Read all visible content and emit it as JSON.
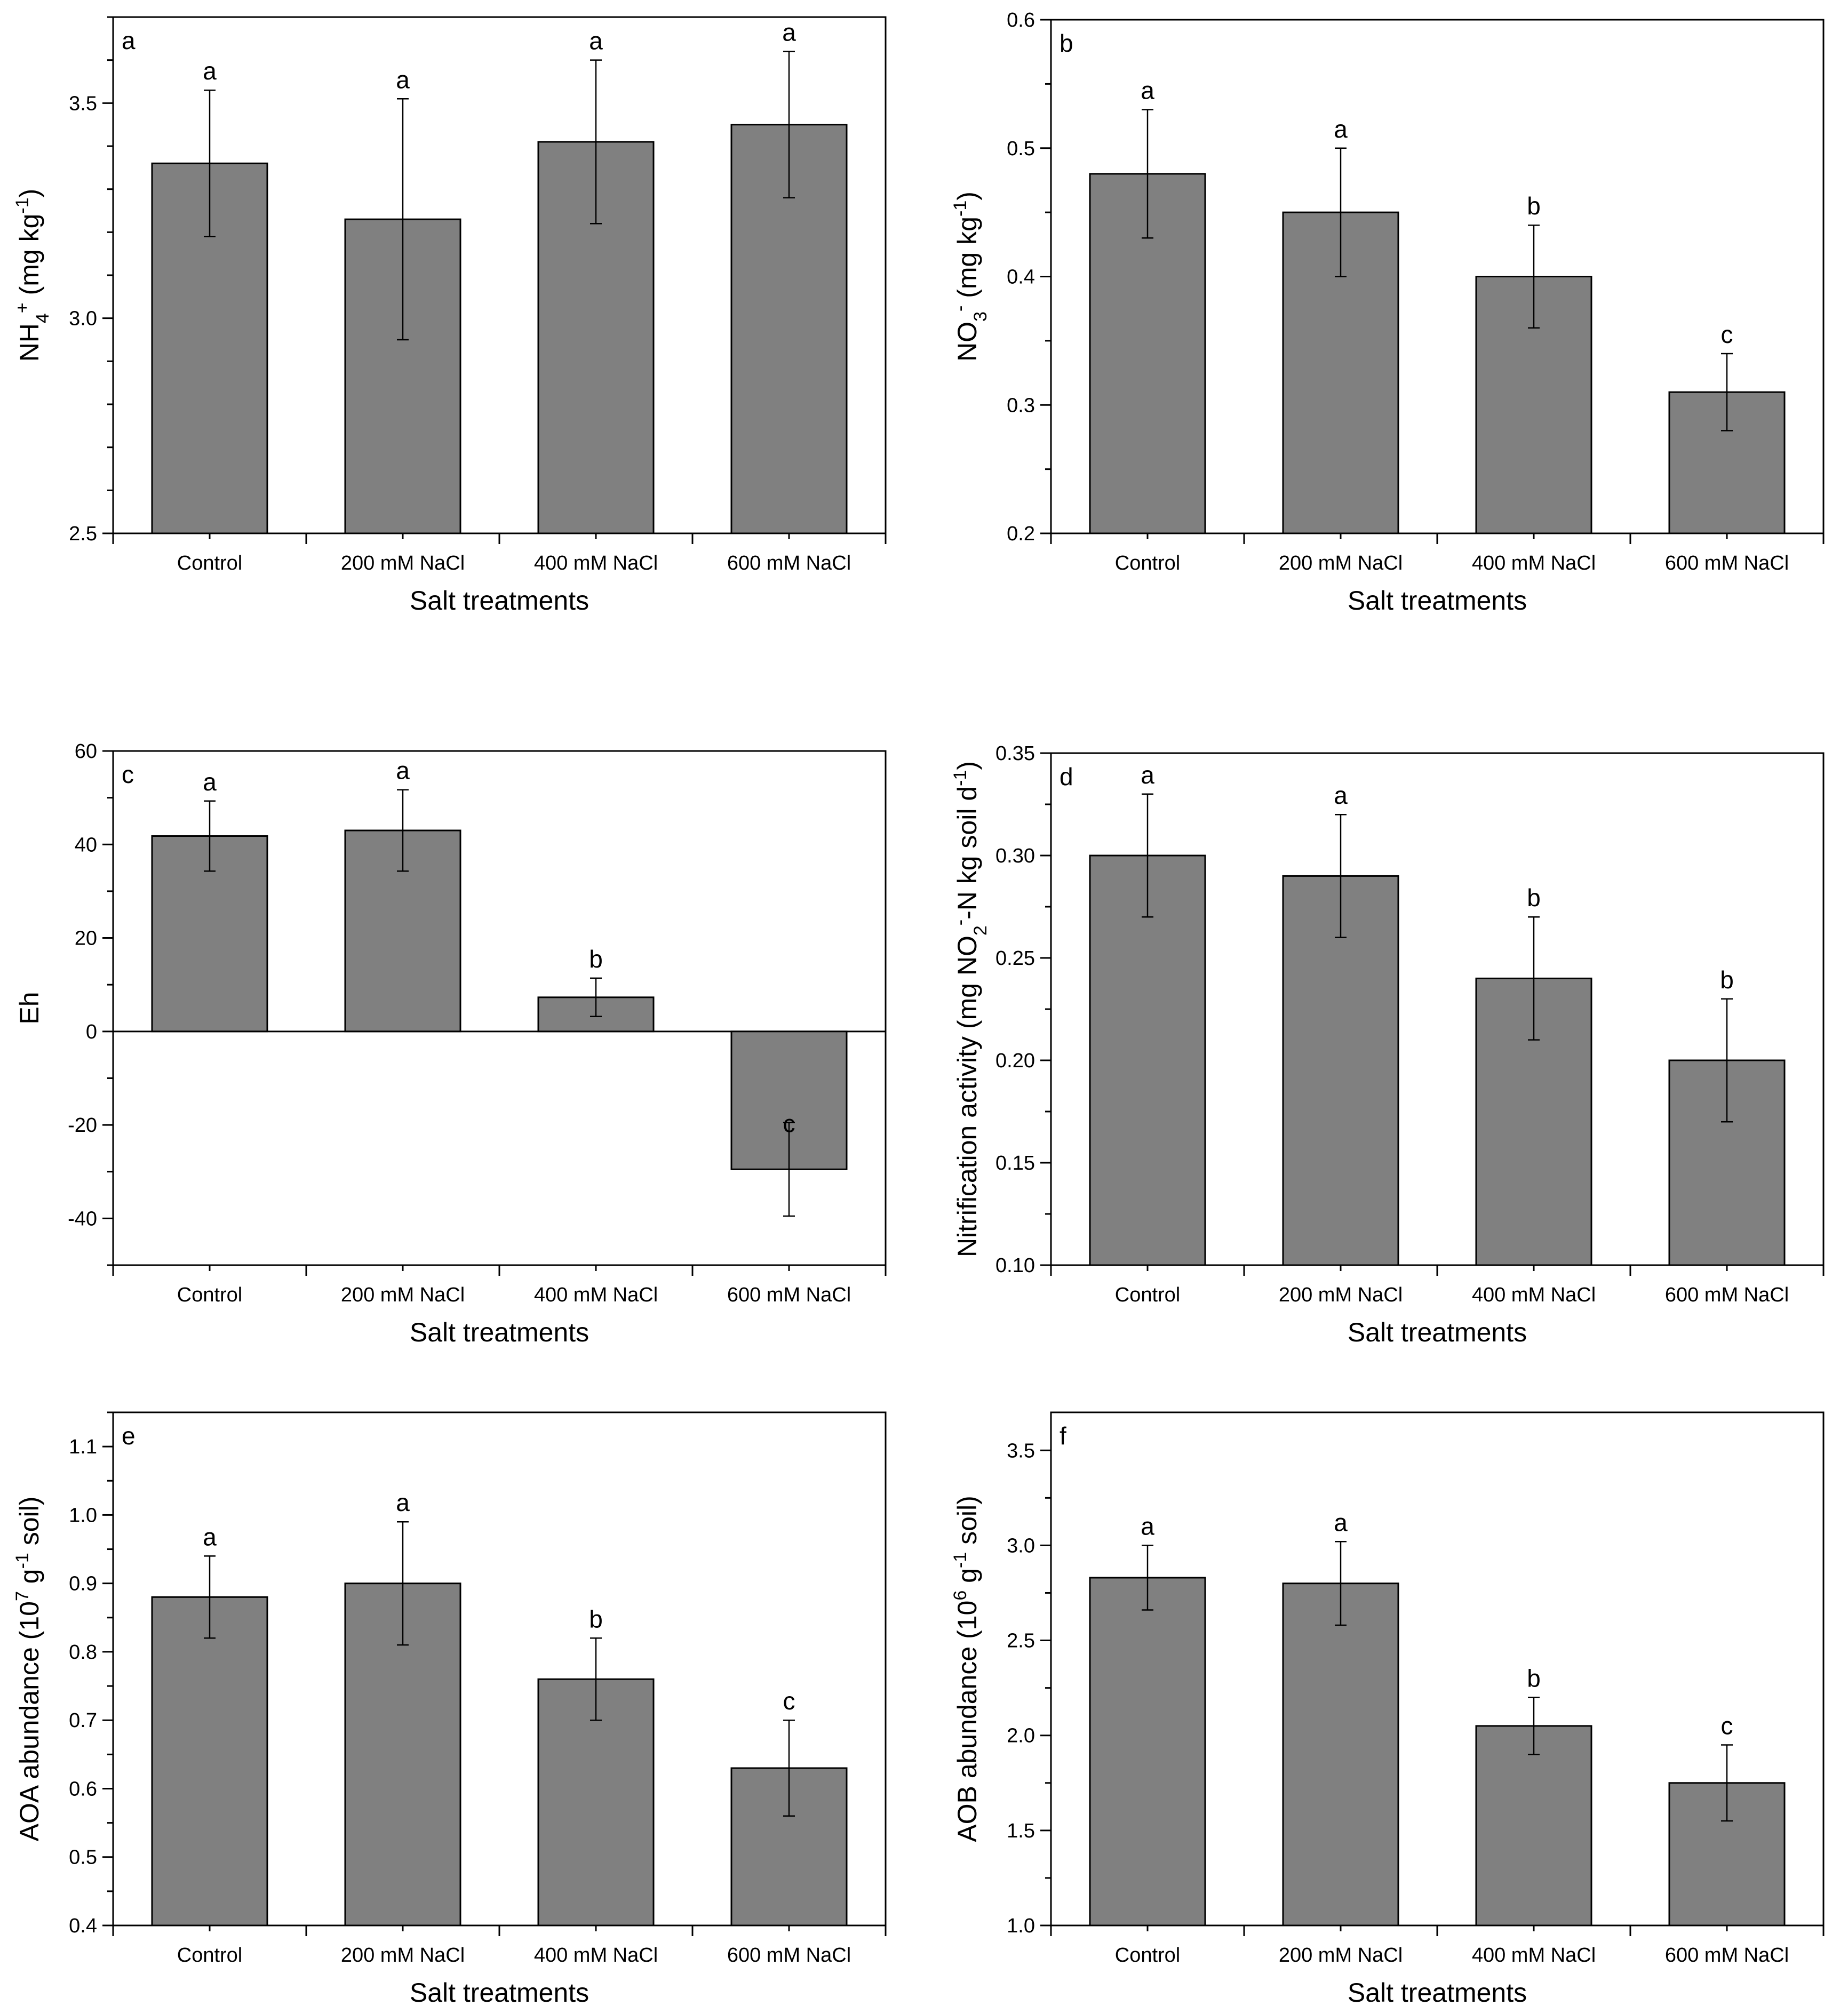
{
  "chart_data": [
    {
      "panel": "a",
      "type": "bar",
      "categories": [
        "Control",
        "200 mM NaCl",
        "400 mM NaCl",
        "600 mM NaCl"
      ],
      "values": [
        3.36,
        3.23,
        3.41,
        3.45
      ],
      "errors": [
        0.17,
        0.28,
        0.19,
        0.17
      ],
      "significance": [
        "a",
        "a",
        "a",
        "a"
      ],
      "xlabel": "Salt treatments",
      "ylabel_parts": [
        [
          "NH",
          ""
        ],
        [
          "4",
          "sub"
        ],
        [
          "+",
          "sup"
        ],
        [
          " (mg kg",
          ""
        ],
        [
          "-1",
          "sup"
        ],
        [
          ")",
          ""
        ]
      ],
      "ylim": [
        2.5,
        3.7
      ],
      "yticks": [
        "2.5",
        "3.0",
        "3.5"
      ],
      "minor_step": 0.1
    },
    {
      "panel": "b",
      "type": "bar",
      "categories": [
        "Control",
        "200 mM NaCl",
        "400 mM NaCl",
        "600 mM NaCl"
      ],
      "values": [
        0.48,
        0.45,
        0.4,
        0.31
      ],
      "errors": [
        0.05,
        0.05,
        0.04,
        0.03
      ],
      "significance": [
        "a",
        "a",
        "b",
        "c"
      ],
      "xlabel": "Salt treatments",
      "ylabel_parts": [
        [
          "NO",
          ""
        ],
        [
          "3",
          "sub"
        ],
        [
          "-",
          "sup"
        ],
        [
          " (mg kg",
          ""
        ],
        [
          "-1",
          "sup"
        ],
        [
          ")",
          ""
        ]
      ],
      "ylim": [
        0.2,
        0.6
      ],
      "yticks": [
        "0.2",
        "0.3",
        "0.4",
        "0.5",
        "0.6"
      ],
      "minor_step": 0.05
    },
    {
      "panel": "c",
      "type": "bar",
      "categories": [
        "Control",
        "200 mM NaCl",
        "400 mM NaCl",
        "600 mM NaCl"
      ],
      "values": [
        41.8,
        43.0,
        7.3,
        -29.5
      ],
      "errors": [
        7.5,
        8.7,
        4.1,
        10.0
      ],
      "significance": [
        "a",
        "a",
        "b",
        "c"
      ],
      "xlabel": "Salt treatments",
      "ylabel_parts": [
        [
          "Eh",
          ""
        ]
      ],
      "ylim": [
        -50,
        60
      ],
      "yticks": [
        "-40",
        "-20",
        "0",
        "20",
        "40",
        "60"
      ],
      "minor_step": 10,
      "zero_line": true
    },
    {
      "panel": "d",
      "type": "bar",
      "categories": [
        "Control",
        "200 mM NaCl",
        "400 mM NaCl",
        "600 mM NaCl"
      ],
      "values": [
        0.3,
        0.29,
        0.24,
        0.2
      ],
      "errors": [
        0.03,
        0.03,
        0.03,
        0.03
      ],
      "significance": [
        "a",
        "a",
        "b",
        "b"
      ],
      "xlabel": "Salt treatments",
      "ylabel_parts": [
        [
          "Nitrification activity (mg NO",
          ""
        ],
        [
          "2",
          "sub"
        ],
        [
          "-",
          "sup"
        ],
        [
          "-N kg soil d",
          ""
        ],
        [
          "-1",
          "sup"
        ],
        [
          ")",
          ""
        ]
      ],
      "ylim": [
        0.1,
        0.35
      ],
      "yticks": [
        "0.10",
        "0.15",
        "0.20",
        "0.25",
        "0.30",
        "0.35"
      ],
      "minor_step": 0.025
    },
    {
      "panel": "e",
      "type": "bar",
      "categories": [
        "Control",
        "200 mM NaCl",
        "400 mM NaCl",
        "600 mM NaCl"
      ],
      "values": [
        0.88,
        0.9,
        0.76,
        0.63
      ],
      "errors": [
        0.06,
        0.09,
        0.06,
        0.07
      ],
      "significance": [
        "a",
        "a",
        "b",
        "c"
      ],
      "xlabel": "Salt treatments",
      "ylabel_parts": [
        [
          "AOA abundance (10",
          ""
        ],
        [
          "7",
          "sup"
        ],
        [
          " g",
          ""
        ],
        [
          "-1",
          "sup"
        ],
        [
          " soil)",
          ""
        ]
      ],
      "ylim": [
        0.4,
        1.15
      ],
      "yticks": [
        "0.4",
        "0.5",
        "0.6",
        "0.7",
        "0.8",
        "0.9",
        "1.0",
        "1.1"
      ],
      "minor_step": 0.05
    },
    {
      "panel": "f",
      "type": "bar",
      "categories": [
        "Control",
        "200 mM NaCl",
        "400 mM NaCl",
        "600 mM NaCl"
      ],
      "values": [
        2.83,
        2.8,
        2.05,
        1.75
      ],
      "errors": [
        0.17,
        0.22,
        0.15,
        0.2
      ],
      "significance": [
        "a",
        "a",
        "b",
        "c"
      ],
      "xlabel": "Salt treatments",
      "ylabel_parts": [
        [
          "AOB abundance (10",
          ""
        ],
        [
          "6",
          "sup"
        ],
        [
          " g",
          ""
        ],
        [
          "-1",
          "sup"
        ],
        [
          " soil)",
          ""
        ]
      ],
      "ylim": [
        1.0,
        3.7
      ],
      "yticks": [
        "1.0",
        "1.5",
        "2.0",
        "2.5",
        "3.0",
        "3.5"
      ],
      "minor_step": 0.25
    }
  ]
}
